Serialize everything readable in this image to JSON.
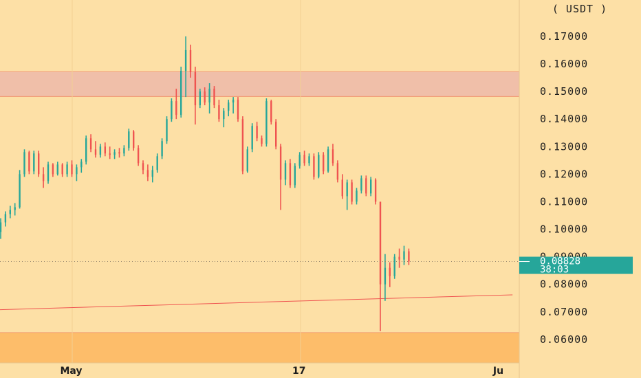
{
  "chart_data": {
    "type": "candlestick",
    "unit_label": "USDT",
    "y_ticks": [
      "0.17000",
      "0.16000",
      "0.15000",
      "0.14000",
      "0.13000",
      "0.12000",
      "0.11000",
      "0.10000",
      "0.09000",
      "0.08000",
      "0.07000",
      "0.06000"
    ],
    "x_ticks": [
      {
        "label": "May",
        "index": 15
      },
      {
        "label": "17",
        "index": 63
      },
      {
        "label": "Ju",
        "index": 105
      }
    ],
    "ylim": [
      0.0515,
      0.1832
    ],
    "last_price": {
      "value": 0.08828,
      "label": "0.08828",
      "countdown": "38:03",
      "color": "#26a69a"
    },
    "colors": {
      "up": "#26a69a",
      "down": "#ef5350",
      "background": "#fde0a6",
      "zone_top": "#f0bfa9",
      "zone_bottom": "#fdbd6a",
      "trendline": "#ef5350"
    },
    "zones": [
      {
        "name": "resistance-zone",
        "from": 0.1482,
        "to": 0.1572,
        "color": "#f0bfa9"
      },
      {
        "name": "support-zone",
        "from": 0.0515,
        "to": 0.0625,
        "color": "#fdbd6a"
      }
    ],
    "trendline": {
      "start": {
        "index": 0,
        "value": 0.0708
      },
      "end": {
        "index": 108,
        "value": 0.0762
      }
    },
    "candles": [
      [
        0.099,
        0.104,
        0.0965,
        0.1025
      ],
      [
        0.1025,
        0.1065,
        0.101,
        0.1055
      ],
      [
        0.1055,
        0.1085,
        0.104,
        0.107
      ],
      [
        0.107,
        0.1095,
        0.105,
        0.108
      ],
      [
        0.108,
        0.1215,
        0.1075,
        0.12
      ],
      [
        0.12,
        0.129,
        0.119,
        0.128
      ],
      [
        0.128,
        0.1285,
        0.12,
        0.121
      ],
      [
        0.121,
        0.1285,
        0.12,
        0.1275
      ],
      [
        0.1275,
        0.1285,
        0.119,
        0.12
      ],
      [
        0.12,
        0.1225,
        0.115,
        0.1175
      ],
      [
        0.1175,
        0.1245,
        0.1165,
        0.1235
      ],
      [
        0.1235,
        0.124,
        0.119,
        0.12
      ],
      [
        0.12,
        0.1245,
        0.1195,
        0.1235
      ],
      [
        0.1235,
        0.124,
        0.119,
        0.12
      ],
      [
        0.12,
        0.1245,
        0.119,
        0.1235
      ],
      [
        0.1235,
        0.125,
        0.119,
        0.12
      ],
      [
        0.12,
        0.1235,
        0.1175,
        0.1225
      ],
      [
        0.1225,
        0.1255,
        0.1205,
        0.1245
      ],
      [
        0.1245,
        0.134,
        0.1235,
        0.133
      ],
      [
        0.133,
        0.1345,
        0.128,
        0.129
      ],
      [
        0.129,
        0.132,
        0.126,
        0.127
      ],
      [
        0.127,
        0.131,
        0.126,
        0.13
      ],
      [
        0.13,
        0.1315,
        0.1265,
        0.1275
      ],
      [
        0.1275,
        0.13,
        0.1255,
        0.127
      ],
      [
        0.127,
        0.129,
        0.1255,
        0.128
      ],
      [
        0.128,
        0.1295,
        0.126,
        0.1275
      ],
      [
        0.1275,
        0.1305,
        0.1265,
        0.1295
      ],
      [
        0.1295,
        0.1365,
        0.1285,
        0.1355
      ],
      [
        0.1355,
        0.136,
        0.1285,
        0.1295
      ],
      [
        0.1295,
        0.1305,
        0.123,
        0.124
      ],
      [
        0.124,
        0.125,
        0.12,
        0.1215
      ],
      [
        0.1215,
        0.1235,
        0.1175,
        0.119
      ],
      [
        0.119,
        0.123,
        0.117,
        0.1215
      ],
      [
        0.1215,
        0.1275,
        0.1205,
        0.1265
      ],
      [
        0.1265,
        0.133,
        0.1255,
        0.132
      ],
      [
        0.132,
        0.141,
        0.131,
        0.14
      ],
      [
        0.14,
        0.1475,
        0.139,
        0.1465
      ],
      [
        0.1465,
        0.151,
        0.14,
        0.1415
      ],
      [
        0.1415,
        0.159,
        0.1405,
        0.1575
      ],
      [
        0.1575,
        0.17,
        0.148,
        0.165
      ],
      [
        0.165,
        0.167,
        0.155,
        0.157
      ],
      [
        0.157,
        0.159,
        0.138,
        0.145
      ],
      [
        0.145,
        0.151,
        0.144,
        0.15
      ],
      [
        0.15,
        0.1515,
        0.145,
        0.146
      ],
      [
        0.146,
        0.153,
        0.142,
        0.151
      ],
      [
        0.151,
        0.152,
        0.144,
        0.145
      ],
      [
        0.145,
        0.147,
        0.139,
        0.14
      ],
      [
        0.14,
        0.144,
        0.137,
        0.143
      ],
      [
        0.143,
        0.147,
        0.141,
        0.146
      ],
      [
        0.146,
        0.148,
        0.142,
        0.147
      ],
      [
        0.147,
        0.148,
        0.139,
        0.14
      ],
      [
        0.14,
        0.141,
        0.12,
        0.121
      ],
      [
        0.121,
        0.13,
        0.1205,
        0.129
      ],
      [
        0.129,
        0.1385,
        0.128,
        0.1375
      ],
      [
        0.1375,
        0.139,
        0.132,
        0.133
      ],
      [
        0.133,
        0.134,
        0.13,
        0.131
      ],
      [
        0.131,
        0.1475,
        0.13,
        0.1465
      ],
      [
        0.1465,
        0.147,
        0.138,
        0.139
      ],
      [
        0.139,
        0.14,
        0.129,
        0.13
      ],
      [
        0.13,
        0.131,
        0.107,
        0.118
      ],
      [
        0.118,
        0.125,
        0.116,
        0.124
      ],
      [
        0.124,
        0.1255,
        0.115,
        0.116
      ],
      [
        0.116,
        0.124,
        0.115,
        0.123
      ],
      [
        0.123,
        0.128,
        0.122,
        0.127
      ],
      [
        0.127,
        0.1285,
        0.123,
        0.124
      ],
      [
        0.124,
        0.1275,
        0.123,
        0.1265
      ],
      [
        0.1265,
        0.1275,
        0.118,
        0.119
      ],
      [
        0.119,
        0.128,
        0.1185,
        0.127
      ],
      [
        0.127,
        0.128,
        0.12,
        0.121
      ],
      [
        0.121,
        0.13,
        0.1205,
        0.129
      ],
      [
        0.129,
        0.131,
        0.123,
        0.124
      ],
      [
        0.124,
        0.125,
        0.117,
        0.118
      ],
      [
        0.118,
        0.12,
        0.111,
        0.112
      ],
      [
        0.112,
        0.118,
        0.107,
        0.117
      ],
      [
        0.117,
        0.118,
        0.109,
        0.11
      ],
      [
        0.11,
        0.115,
        0.109,
        0.114
      ],
      [
        0.114,
        0.1195,
        0.113,
        0.1185
      ],
      [
        0.1185,
        0.1195,
        0.112,
        0.113
      ],
      [
        0.113,
        0.119,
        0.112,
        0.118
      ],
      [
        0.118,
        0.1185,
        0.109,
        0.11
      ],
      [
        0.11,
        0.11,
        0.063,
        0.08
      ],
      [
        0.08,
        0.091,
        0.074,
        0.086
      ],
      [
        0.086,
        0.088,
        0.079,
        0.083
      ],
      [
        0.083,
        0.091,
        0.082,
        0.09
      ],
      [
        0.09,
        0.093,
        0.086,
        0.089
      ],
      [
        0.089,
        0.094,
        0.087,
        0.092
      ],
      [
        0.092,
        0.093,
        0.087,
        0.0883
      ]
    ]
  }
}
